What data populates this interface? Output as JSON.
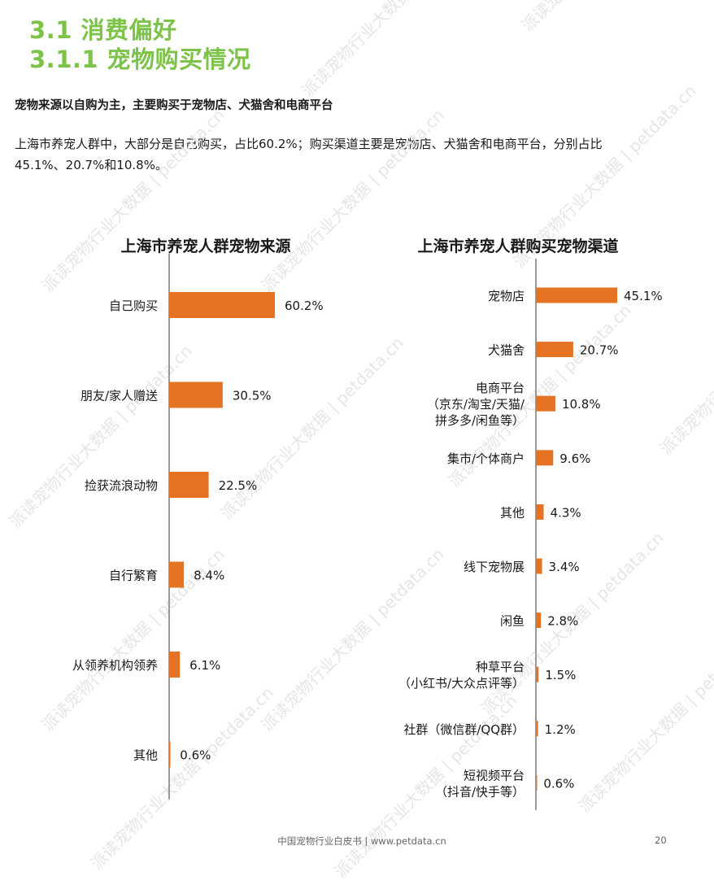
{
  "theme": {
    "heading_color": "#7dc34a",
    "bar_color": "#e57324",
    "axis_color": "#9a9a9a",
    "watermark_color": "#e6e6e6"
  },
  "heading": {
    "section": "3.1 消费偏好",
    "subsection": "3.1.1 宠物购买情况"
  },
  "subhead": "宠物来源以自购为主，主要购买于宠物店、犬猫舍和电商平台",
  "paragraph": {
    "line1": "上海市养宠人群中，大部分是自己购买，占比60.2%；购买渠道主要是宠物店、犬猫舍和电商平台，分别占比",
    "line2": "45.1%、20.7%和10.8%。"
  },
  "watermark": "派读宠物行业大数据 | petdata.cn",
  "footer": {
    "text": "中国宠物行业白皮书 | www.petdata.cn",
    "page": "20"
  },
  "chart_data": [
    {
      "type": "bar",
      "orientation": "horizontal",
      "title": "上海市养宠人群宠物来源",
      "categories": [
        [
          "自己购买"
        ],
        [
          "朋友/家人赠送"
        ],
        [
          "捡获流浪动物"
        ],
        [
          "自行繁育"
        ],
        [
          "从领养机构领养"
        ],
        [
          "其他"
        ]
      ],
      "values": [
        60.2,
        30.5,
        22.5,
        8.4,
        6.1,
        0.6
      ],
      "data_labels": [
        "60.2%",
        "30.5%",
        "22.5%",
        "8.4%",
        "6.1%",
        "0.6%"
      ],
      "unit": "%",
      "grid": false,
      "legend": "none"
    },
    {
      "type": "bar",
      "orientation": "horizontal",
      "title": "上海市养宠人群购买宠物渠道",
      "categories": [
        [
          "宠物店"
        ],
        [
          "犬猫舍"
        ],
        [
          "电商平台",
          "（京东/淘宝/天猫/",
          "拼多多/闲鱼等）"
        ],
        [
          "集市/个体商户"
        ],
        [
          "其他"
        ],
        [
          "线下宠物展"
        ],
        [
          "闲鱼"
        ],
        [
          "种草平台",
          "（小红书/大众点评等）"
        ],
        [
          "社群（微信群/QQ群）"
        ],
        [
          "短视频平台",
          "（抖音/快手等）"
        ]
      ],
      "values": [
        45.1,
        20.7,
        10.8,
        9.6,
        4.3,
        3.4,
        2.8,
        1.5,
        1.2,
        0.6
      ],
      "data_labels": [
        "45.1%",
        "20.7%",
        "10.8%",
        "9.6%",
        "4.3%",
        "3.4%",
        "2.8%",
        "1.5%",
        "1.2%",
        "0.6%"
      ],
      "unit": "%",
      "grid": false,
      "legend": "none"
    }
  ]
}
